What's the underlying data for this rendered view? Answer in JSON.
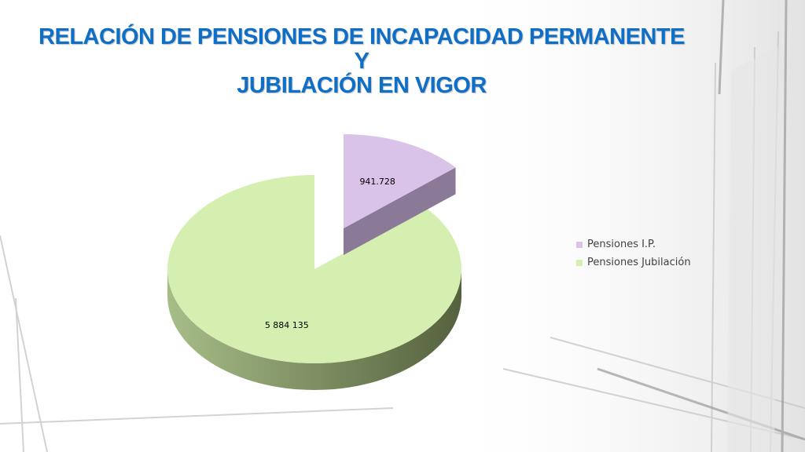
{
  "slide": {
    "title_line1": "RELACIÓN DE PENSIONES DE INCAPACIDAD PERMANENTE Y",
    "title_line2": "JUBILACIÓN EN VIGOR"
  },
  "colors": {
    "title": "#0f6fc6",
    "ip_top": "#d9c3e9",
    "ip_side": "#8a7a98",
    "jub_top": "#d4efb0",
    "jub_side_light": "#a7bd88",
    "jub_side_dark": "#55613e"
  },
  "chart_data": {
    "type": "pie",
    "title": "",
    "labels": [
      "Pensiones I.P.",
      "Pensiones Jubilación"
    ],
    "values": [
      941728,
      5884135
    ],
    "data_labels": [
      "941.728",
      "5 884 135"
    ],
    "exploded": [
      true,
      false
    ],
    "style_3d": true,
    "legend_position": "right"
  }
}
